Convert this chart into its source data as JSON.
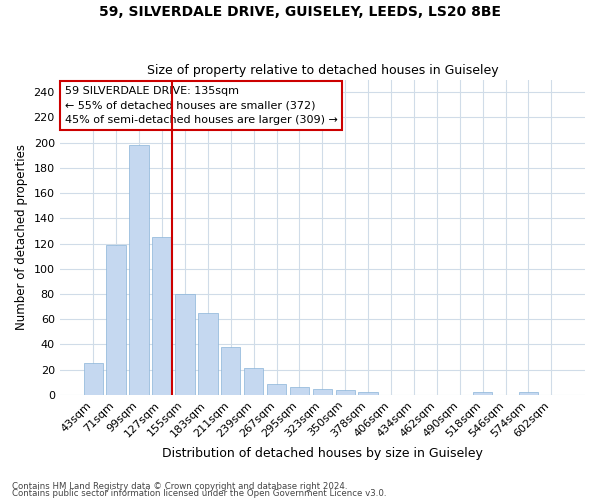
{
  "title1": "59, SILVERDALE DRIVE, GUISELEY, LEEDS, LS20 8BE",
  "title2": "Size of property relative to detached houses in Guiseley",
  "xlabel": "Distribution of detached houses by size in Guiseley",
  "ylabel": "Number of detached properties",
  "bar_color": "#c5d8f0",
  "bar_edge_color": "#8ab4d8",
  "categories": [
    "43sqm",
    "71sqm",
    "99sqm",
    "127sqm",
    "155sqm",
    "183sqm",
    "211sqm",
    "239sqm",
    "267sqm",
    "295sqm",
    "323sqm",
    "350sqm",
    "378sqm",
    "406sqm",
    "434sqm",
    "462sqm",
    "490sqm",
    "518sqm",
    "546sqm",
    "574sqm",
    "602sqm"
  ],
  "values": [
    25,
    119,
    198,
    125,
    80,
    65,
    38,
    21,
    9,
    6,
    5,
    4,
    2,
    0,
    0,
    0,
    0,
    2,
    0,
    2,
    0
  ],
  "ylim": [
    0,
    250
  ],
  "yticks": [
    0,
    20,
    40,
    60,
    80,
    100,
    120,
    140,
    160,
    180,
    200,
    220,
    240
  ],
  "vline_after_index": 3,
  "vline_color": "#cc0000",
  "annotation_title": "59 SILVERDALE DRIVE: 135sqm",
  "annotation_line1": "← 55% of detached houses are smaller (372)",
  "annotation_line2": "45% of semi-detached houses are larger (309) →",
  "annotation_box_color": "#ffffff",
  "annotation_box_edge": "#cc0000",
  "footer1": "Contains HM Land Registry data © Crown copyright and database right 2024.",
  "footer2": "Contains public sector information licensed under the Open Government Licence v3.0.",
  "bg_color": "#ffffff",
  "grid_color": "#d0dce8"
}
